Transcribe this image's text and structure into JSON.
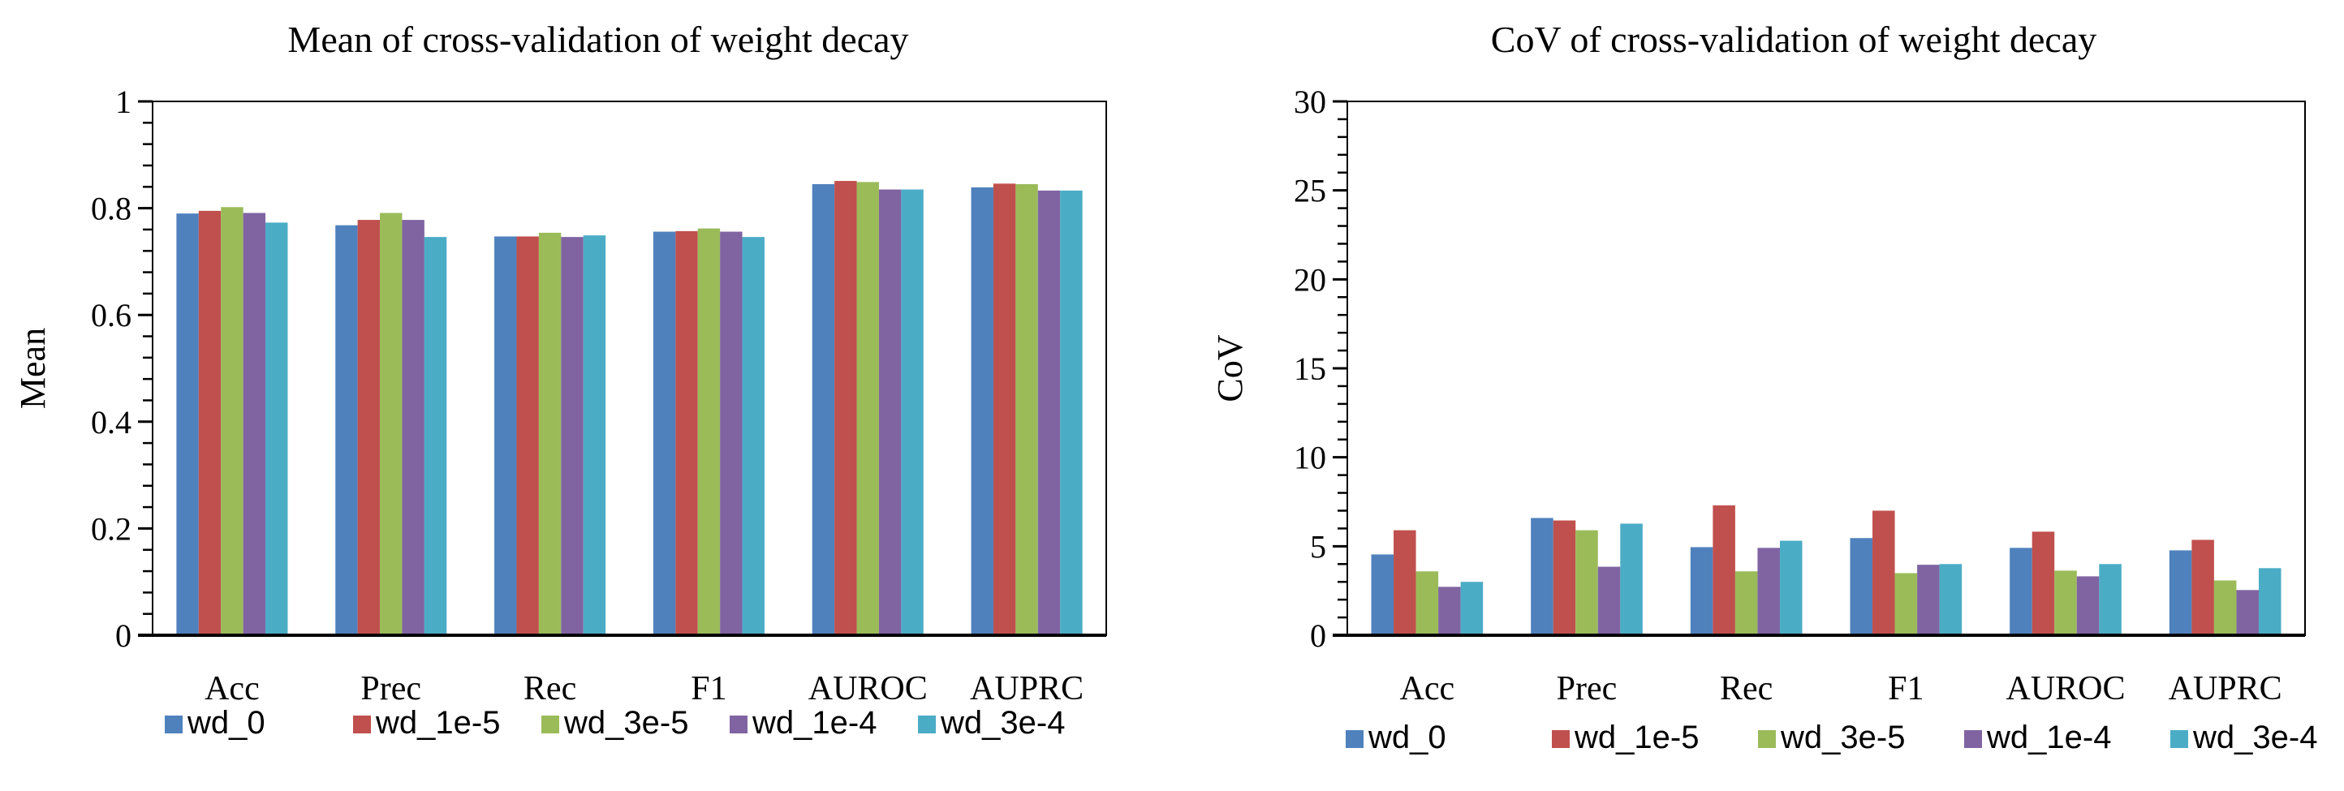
{
  "colors": [
    "#4F81BD",
    "#C0504D",
    "#9BBB59",
    "#8064A2",
    "#4BACC6"
  ],
  "chart_data": [
    {
      "type": "bar",
      "title": "Mean of cross-validation of weight decay",
      "xlabel": "",
      "ylabel": "Mean",
      "ylim": [
        0,
        1
      ],
      "yticks": [
        "0",
        "0.2",
        "0.4",
        "0.6",
        "0.8",
        "1"
      ],
      "ytick_values": [
        0,
        0.2,
        0.4,
        0.6,
        0.8,
        1
      ],
      "minor_step": 0.04,
      "legend_position": "bottom",
      "grid": false,
      "categories": [
        "Acc",
        "Prec",
        "Rec",
        "F1",
        "AUROC",
        "AUPRC"
      ],
      "series": [
        {
          "name": "wd_0",
          "values": [
            0.79,
            0.768,
            0.747,
            0.756,
            0.845,
            0.839
          ]
        },
        {
          "name": "wd_1e-5",
          "values": [
            0.795,
            0.778,
            0.747,
            0.757,
            0.851,
            0.846
          ]
        },
        {
          "name": "wd_3e-5",
          "values": [
            0.802,
            0.791,
            0.754,
            0.762,
            0.849,
            0.845
          ]
        },
        {
          "name": "wd_1e-4",
          "values": [
            0.791,
            0.778,
            0.746,
            0.756,
            0.835,
            0.833
          ]
        },
        {
          "name": "wd_3e-4",
          "values": [
            0.773,
            0.746,
            0.749,
            0.746,
            0.835,
            0.833
          ]
        }
      ]
    },
    {
      "type": "bar",
      "title": "CoV of cross-validation of weight decay",
      "xlabel": "",
      "ylabel": "CoV",
      "ylim": [
        0,
        30
      ],
      "yticks": [
        "0",
        "5",
        "10",
        "15",
        "20",
        "25",
        "30"
      ],
      "ytick_values": [
        0,
        5,
        10,
        15,
        20,
        25,
        30
      ],
      "minor_step": 1,
      "legend_position": "bottom",
      "grid": false,
      "categories": [
        "Acc",
        "Prec",
        "Rec",
        "F1",
        "AUROC",
        "AUPRC"
      ],
      "series": [
        {
          "name": "wd_0",
          "values": [
            4.54,
            6.59,
            4.95,
            5.46,
            4.91,
            4.77
          ]
        },
        {
          "name": "wd_1e-5",
          "values": [
            5.9,
            6.45,
            7.3,
            7.0,
            5.82,
            5.36
          ]
        },
        {
          "name": "wd_3e-5",
          "values": [
            3.59,
            5.9,
            3.59,
            3.49,
            3.63,
            3.08
          ]
        },
        {
          "name": "wd_1e-4",
          "values": [
            2.72,
            3.85,
            4.91,
            3.96,
            3.31,
            2.54
          ]
        },
        {
          "name": "wd_3e-4",
          "values": [
            3.0,
            6.27,
            5.31,
            4.0,
            4.0,
            3.77
          ]
        }
      ]
    }
  ]
}
